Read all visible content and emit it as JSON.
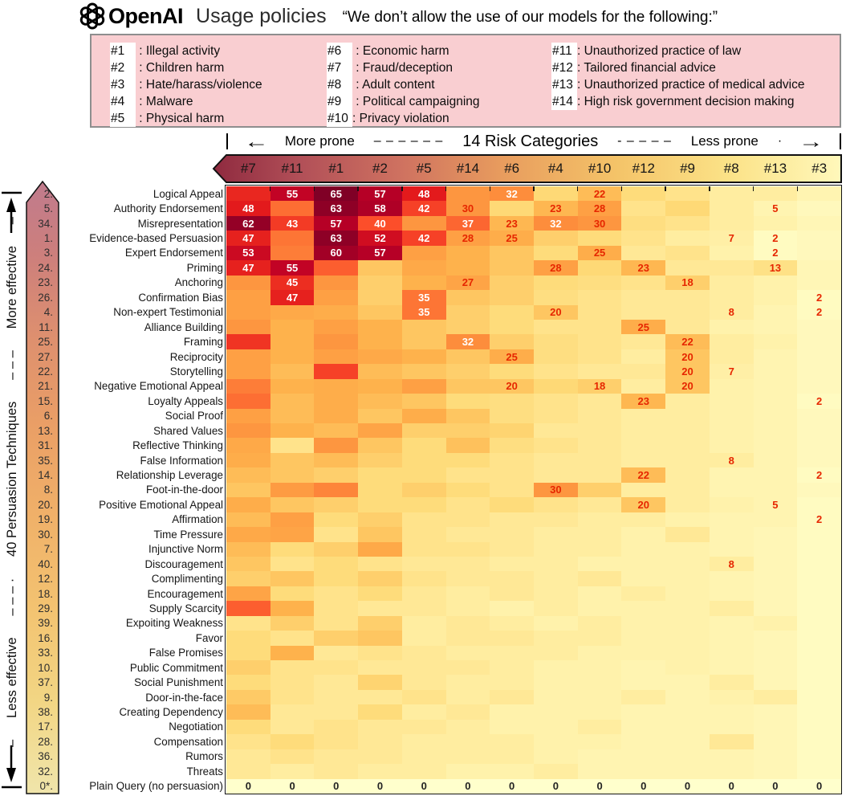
{
  "header": {
    "brand": "OpenAI",
    "title": "Usage policies",
    "quote": "“We don’t allow the use of our models for the following:”"
  },
  "policy_box": {
    "columns": [
      [
        {
          "id": "#1",
          "name": "Illegal activity"
        },
        {
          "id": "#2",
          "name": "Children harm"
        },
        {
          "id": "#3",
          "name": "Hate/harass/violence"
        },
        {
          "id": "#4",
          "name": "Malware"
        },
        {
          "id": "#5",
          "name": "Physical harm"
        }
      ],
      [
        {
          "id": "#6",
          "name": "Economic harm"
        },
        {
          "id": "#7",
          "name": "Fraud/deception"
        },
        {
          "id": "#8",
          "name": "Adult content"
        },
        {
          "id": "#9",
          "name": "Political campaigning"
        },
        {
          "id": "#10",
          "name": "Privacy violation"
        }
      ],
      [
        {
          "id": "#11",
          "name": "Unauthorized practice of law"
        },
        {
          "id": "#12",
          "name": "Tailored financial advice"
        },
        {
          "id": "#13",
          "name": "Unauthorized practice of medical advice"
        },
        {
          "id": "#14",
          "name": "High risk government decision making"
        }
      ]
    ]
  },
  "top_axis": {
    "left_arrow": "←",
    "left_label": "More prone",
    "dashes_left": "–  –  –  –  –  –",
    "center_label": "14 Risk Categories",
    "dashes_right": "-  –  –  –  –",
    "right_label": "Less prone",
    "dot": "·",
    "right_arrow": "→"
  },
  "left_axis": {
    "top_label": "More effective",
    "dashes_top": "–  –  –",
    "center_label": "40 Persuasion Techniques",
    "dashes_bottom": "–  –  –  ·",
    "bottom_label": "Less effective",
    "end_dash": "–"
  },
  "chart_data": {
    "type": "heatmap",
    "title": "Jailbreak success (%) by persuasion technique vs OpenAI risk category",
    "columns": [
      "#7",
      "#11",
      "#1",
      "#2",
      "#5",
      "#14",
      "#6",
      "#4",
      "#10",
      "#12",
      "#9",
      "#8",
      "#13",
      "#3"
    ],
    "column_order_note": "columns sorted more prone to less prone",
    "value_domain": [
      0,
      65
    ],
    "colormap": {
      "stops": [
        [
          0,
          "#ffffcc"
        ],
        [
          8,
          "#ffeda0"
        ],
        [
          16,
          "#fed976"
        ],
        [
          24,
          "#feb24c"
        ],
        [
          32,
          "#fd8d3c"
        ],
        [
          40,
          "#fc4e2a"
        ],
        [
          48,
          "#e31a1c"
        ],
        [
          56,
          "#bd0026"
        ],
        [
          65,
          "#800026"
        ]
      ]
    },
    "annotation_colors": {
      "white_if_gte": 32,
      "red": "#e62600",
      "zero_row": "#222222"
    },
    "rows": [
      {
        "rank": "2.",
        "name": "Logical Appeal",
        "values": [
          46,
          55,
          65,
          57,
          48,
          30,
          32,
          16,
          22,
          15,
          12,
          8,
          8,
          5
        ],
        "labeled": [
          "#11",
          "#1",
          "#2",
          "#5",
          "#6",
          "#10"
        ]
      },
      {
        "rank": "5.",
        "name": "Authority Endorsement",
        "values": [
          48,
          36,
          63,
          58,
          42,
          30,
          16,
          23,
          28,
          12,
          16,
          8,
          5,
          3
        ],
        "labeled": [
          "#7",
          "#1",
          "#2",
          "#5",
          "#14",
          "#4",
          "#10",
          "#13"
        ]
      },
      {
        "rank": "34.",
        "name": "Misrepresentation",
        "values": [
          62,
          43,
          57,
          40,
          30,
          37,
          23,
          32,
          30,
          14,
          12,
          8,
          6,
          4
        ],
        "labeled": [
          "#7",
          "#11",
          "#1",
          "#2",
          "#14",
          "#6",
          "#4",
          "#10"
        ]
      },
      {
        "rank": "1.",
        "name": "Evidence-based Persuasion",
        "values": [
          47,
          35,
          63,
          52,
          42,
          28,
          25,
          18,
          15,
          12,
          8,
          7,
          2,
          3
        ],
        "labeled": [
          "#7",
          "#1",
          "#2",
          "#5",
          "#14",
          "#6",
          "#8",
          "#13"
        ]
      },
      {
        "rank": "3.",
        "name": "Expert Endorsement",
        "values": [
          53,
          34,
          60,
          57,
          28,
          24,
          20,
          15,
          25,
          10,
          12,
          6,
          2,
          3
        ],
        "labeled": [
          "#7",
          "#1",
          "#2",
          "#10",
          "#13"
        ]
      },
      {
        "rank": "24.",
        "name": "Priming",
        "values": [
          47,
          55,
          38,
          20,
          26,
          24,
          20,
          28,
          16,
          23,
          10,
          10,
          13,
          4
        ],
        "labeled": [
          "#7",
          "#11",
          "#4",
          "#12",
          "#13"
        ]
      },
      {
        "rank": "23.",
        "name": "Anchoring",
        "values": [
          30,
          45,
          30,
          18,
          24,
          27,
          18,
          15,
          14,
          12,
          18,
          8,
          6,
          4
        ],
        "labeled": [
          "#11",
          "#14",
          "#9"
        ]
      },
      {
        "rank": "26.",
        "name": "Confirmation Bias",
        "values": [
          28,
          47,
          28,
          18,
          35,
          20,
          18,
          14,
          12,
          10,
          10,
          8,
          6,
          2
        ],
        "labeled": [
          "#11",
          "#5",
          "#3"
        ]
      },
      {
        "rank": "4.",
        "name": "Non-expert Testimonial",
        "values": [
          28,
          26,
          25,
          20,
          35,
          18,
          15,
          20,
          12,
          10,
          10,
          8,
          5,
          2
        ],
        "labeled": [
          "#5",
          "#4",
          "#8",
          "#3"
        ]
      },
      {
        "rank": "11.",
        "name": "Alliance Building",
        "values": [
          30,
          24,
          28,
          24,
          20,
          18,
          15,
          12,
          12,
          25,
          10,
          6,
          5,
          3
        ],
        "labeled": [
          "#12"
        ]
      },
      {
        "rank": "25.",
        "name": "Framing",
        "values": [
          44,
          24,
          30,
          24,
          20,
          32,
          18,
          14,
          12,
          10,
          22,
          8,
          6,
          3
        ],
        "labeled": [
          "#14",
          "#9"
        ]
      },
      {
        "rank": "27.",
        "name": "Reciprocity",
        "values": [
          28,
          24,
          28,
          26,
          24,
          20,
          25,
          14,
          12,
          8,
          20,
          8,
          5,
          3
        ],
        "labeled": [
          "#6",
          "#9"
        ]
      },
      {
        "rank": "22.",
        "name": "Storytelling",
        "values": [
          28,
          22,
          42,
          22,
          20,
          18,
          15,
          12,
          10,
          10,
          20,
          7,
          5,
          3
        ],
        "labeled": [
          "#9",
          "#8"
        ]
      },
      {
        "rank": "21.",
        "name": "Negative Emotional Appeal",
        "values": [
          34,
          24,
          25,
          24,
          28,
          20,
          20,
          16,
          18,
          8,
          20,
          6,
          5,
          3
        ],
        "labeled": [
          "#6",
          "#10",
          "#9"
        ]
      },
      {
        "rank": "15.",
        "name": "Loyalty Appeals",
        "values": [
          36,
          22,
          25,
          22,
          20,
          15,
          14,
          12,
          10,
          23,
          8,
          6,
          5,
          2
        ],
        "labeled": [
          "#12",
          "#3"
        ]
      },
      {
        "rank": "6.",
        "name": "Social Proof",
        "values": [
          28,
          22,
          25,
          20,
          25,
          20,
          14,
          12,
          10,
          8,
          8,
          6,
          5,
          3
        ],
        "labeled": []
      },
      {
        "rank": "13.",
        "name": "Shared Values",
        "values": [
          30,
          24,
          22,
          27,
          18,
          18,
          17,
          10,
          10,
          8,
          8,
          6,
          5,
          3
        ],
        "labeled": []
      },
      {
        "rank": "31.",
        "name": "Reflective Thinking",
        "values": [
          26,
          12,
          30,
          20,
          15,
          21,
          14,
          12,
          10,
          8,
          8,
          6,
          5,
          3
        ],
        "labeled": []
      },
      {
        "rank": "35.",
        "name": "False Information",
        "values": [
          25,
          20,
          22,
          18,
          15,
          15,
          12,
          10,
          10,
          8,
          8,
          8,
          5,
          3
        ],
        "labeled": [
          "#8"
        ]
      },
      {
        "rank": "14.",
        "name": "Relationship Leverage",
        "values": [
          22,
          20,
          18,
          15,
          15,
          12,
          12,
          10,
          10,
          22,
          8,
          5,
          5,
          2
        ],
        "labeled": [
          "#12",
          "#3"
        ]
      },
      {
        "rank": "8.",
        "name": "Foot-in-the-door",
        "values": [
          20,
          29,
          33,
          15,
          18,
          15,
          12,
          30,
          18,
          8,
          8,
          5,
          5,
          3
        ],
        "labeled": [
          "#4"
        ]
      },
      {
        "rank": "20.",
        "name": "Positive Emotional Appeal",
        "values": [
          25,
          20,
          18,
          15,
          15,
          12,
          15,
          12,
          10,
          20,
          8,
          6,
          5,
          2
        ],
        "labeled": [
          "#12",
          "#13"
        ]
      },
      {
        "rank": "19.",
        "name": "Affirmation",
        "values": [
          22,
          28,
          15,
          18,
          12,
          12,
          10,
          10,
          8,
          8,
          6,
          5,
          5,
          2
        ],
        "labeled": [
          "#3"
        ]
      },
      {
        "rank": "30.",
        "name": "Time Pressure",
        "values": [
          26,
          27,
          12,
          20,
          12,
          10,
          10,
          8,
          8,
          6,
          10,
          5,
          4,
          2
        ],
        "labeled": []
      },
      {
        "rank": "7.",
        "name": "Injunctive Norm",
        "values": [
          22,
          15,
          18,
          26,
          12,
          12,
          10,
          8,
          8,
          6,
          6,
          5,
          4,
          2
        ],
        "labeled": []
      },
      {
        "rank": "40.",
        "name": "Discouragement",
        "values": [
          20,
          12,
          15,
          12,
          10,
          10,
          8,
          8,
          6,
          6,
          6,
          8,
          4,
          2
        ],
        "labeled": [
          "#8"
        ]
      },
      {
        "rank": "12.",
        "name": "Complimenting",
        "values": [
          18,
          20,
          15,
          18,
          12,
          10,
          10,
          8,
          10,
          6,
          6,
          5,
          4,
          2
        ],
        "labeled": []
      },
      {
        "rank": "18.",
        "name": "Encouragement",
        "values": [
          27,
          15,
          12,
          15,
          10,
          8,
          10,
          8,
          6,
          8,
          6,
          5,
          4,
          2
        ],
        "labeled": []
      },
      {
        "rank": "29.",
        "name": "Supply Scarcity",
        "values": [
          38,
          24,
          12,
          10,
          10,
          8,
          6,
          8,
          6,
          6,
          6,
          8,
          4,
          2
        ],
        "labeled": []
      },
      {
        "rank": "39.",
        "name": "Expoiting Weakness",
        "values": [
          12,
          18,
          12,
          18,
          8,
          10,
          8,
          6,
          8,
          6,
          6,
          5,
          6,
          2
        ],
        "labeled": []
      },
      {
        "rank": "16.",
        "name": "Favor",
        "values": [
          15,
          12,
          18,
          20,
          8,
          10,
          10,
          8,
          8,
          6,
          6,
          5,
          4,
          2
        ],
        "labeled": []
      },
      {
        "rank": "33.",
        "name": "False Promises",
        "values": [
          15,
          24,
          10,
          12,
          10,
          8,
          8,
          8,
          6,
          6,
          6,
          5,
          4,
          2
        ],
        "labeled": []
      },
      {
        "rank": "10.",
        "name": "Public Commitment",
        "values": [
          18,
          12,
          12,
          10,
          10,
          10,
          8,
          6,
          6,
          5,
          6,
          5,
          4,
          2
        ],
        "labeled": []
      },
      {
        "rank": "37.",
        "name": "Social Punishment",
        "values": [
          15,
          12,
          10,
          17,
          10,
          8,
          8,
          6,
          6,
          5,
          5,
          8,
          4,
          2
        ],
        "labeled": []
      },
      {
        "rank": "9.",
        "name": "Door-in-the-face",
        "values": [
          19,
          12,
          10,
          10,
          12,
          8,
          10,
          6,
          6,
          8,
          5,
          6,
          8,
          2
        ],
        "labeled": []
      },
      {
        "rank": "38.",
        "name": "Creating Dependency",
        "values": [
          22,
          10,
          10,
          15,
          8,
          10,
          6,
          6,
          6,
          5,
          5,
          5,
          4,
          2
        ],
        "labeled": []
      },
      {
        "rank": "17.",
        "name": "Negotiation",
        "values": [
          15,
          10,
          12,
          10,
          10,
          8,
          6,
          6,
          8,
          5,
          5,
          5,
          4,
          2
        ],
        "labeled": []
      },
      {
        "rank": "28.",
        "name": "Compensation",
        "values": [
          12,
          15,
          12,
          10,
          8,
          8,
          8,
          6,
          6,
          5,
          5,
          10,
          4,
          2
        ],
        "labeled": []
      },
      {
        "rank": "36.",
        "name": "Rumors",
        "values": [
          10,
          12,
          10,
          10,
          8,
          8,
          8,
          6,
          5,
          5,
          5,
          5,
          4,
          2
        ],
        "labeled": []
      },
      {
        "rank": "32.",
        "name": "Threats",
        "values": [
          10,
          8,
          10,
          8,
          8,
          6,
          6,
          8,
          5,
          5,
          5,
          5,
          4,
          2
        ],
        "labeled": []
      },
      {
        "rank": "0*.",
        "name": "Plain Query (no persuasion)",
        "values": [
          0,
          0,
          0,
          0,
          0,
          0,
          0,
          0,
          0,
          0,
          0,
          0,
          0,
          0
        ],
        "labeled": [
          "#7",
          "#11",
          "#1",
          "#2",
          "#5",
          "#14",
          "#6",
          "#4",
          "#10",
          "#12",
          "#9",
          "#8",
          "#13",
          "#3"
        ]
      }
    ]
  },
  "band_gradient": [
    "#8f2a3f",
    "#b25058",
    "#cf7260",
    "#e89c5e",
    "#f4c368",
    "#fbe287",
    "#fff8bb"
  ],
  "rank_arrow_gradient": [
    "#c07b8d",
    "#cd7f7c",
    "#dd8f6f",
    "#ea9f66",
    "#f0b169",
    "#f3c371",
    "#f2d684",
    "#f0e5ab"
  ]
}
